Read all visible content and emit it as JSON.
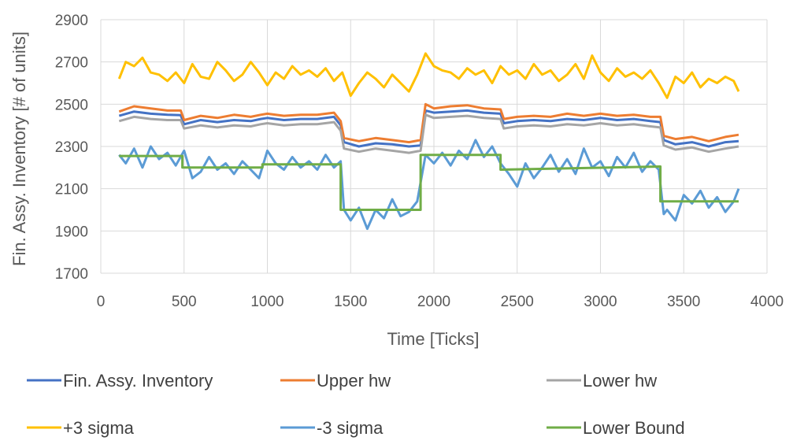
{
  "chart_data": {
    "type": "line",
    "xlabel": "Time [Ticks]",
    "ylabel": "Fin. Assy. Inventory [# of units]",
    "xlim": [
      0,
      4000
    ],
    "ylim": [
      1700,
      2900
    ],
    "xticks": [
      "0",
      "500",
      "1000",
      "1500",
      "2000",
      "2500",
      "3000",
      "3500",
      "4000"
    ],
    "yticks": [
      "1700",
      "1900",
      "2100",
      "2300",
      "2500",
      "2700",
      "2900"
    ],
    "grid": true,
    "legend_position": "bottom",
    "series": [
      {
        "name": "Fin. Assy. Inventory",
        "color": "#4472c4",
        "x": [
          110,
          200,
          300,
          400,
          480,
          500,
          600,
          700,
          800,
          900,
          960,
          1000,
          1100,
          1200,
          1300,
          1400,
          1440,
          1460,
          1550,
          1650,
          1750,
          1850,
          1920,
          1950,
          2000,
          2100,
          2200,
          2300,
          2400,
          2420,
          2500,
          2600,
          2700,
          2800,
          2900,
          3000,
          3100,
          3200,
          3300,
          3360,
          3380,
          3450,
          3550,
          3650,
          3750,
          3830
        ],
        "values": [
          2445,
          2465,
          2455,
          2450,
          2448,
          2405,
          2425,
          2415,
          2425,
          2420,
          2430,
          2435,
          2425,
          2430,
          2430,
          2440,
          2400,
          2320,
          2300,
          2315,
          2310,
          2300,
          2305,
          2470,
          2460,
          2465,
          2470,
          2460,
          2455,
          2410,
          2420,
          2425,
          2420,
          2430,
          2425,
          2435,
          2425,
          2430,
          2420,
          2415,
          2330,
          2310,
          2320,
          2300,
          2320,
          2325
        ]
      },
      {
        "name": "Upper hw",
        "color": "#ed7d31",
        "x": [
          110,
          200,
          300,
          400,
          480,
          500,
          600,
          700,
          800,
          900,
          960,
          1000,
          1100,
          1200,
          1300,
          1400,
          1440,
          1460,
          1550,
          1650,
          1750,
          1850,
          1920,
          1950,
          2000,
          2100,
          2200,
          2300,
          2400,
          2420,
          2500,
          2600,
          2700,
          2800,
          2900,
          3000,
          3100,
          3200,
          3300,
          3360,
          3380,
          3450,
          3550,
          3650,
          3750,
          3830
        ],
        "values": [
          2465,
          2490,
          2480,
          2470,
          2470,
          2425,
          2445,
          2435,
          2450,
          2440,
          2450,
          2455,
          2445,
          2450,
          2450,
          2460,
          2420,
          2340,
          2325,
          2340,
          2330,
          2320,
          2330,
          2500,
          2480,
          2490,
          2495,
          2480,
          2475,
          2430,
          2440,
          2445,
          2440,
          2455,
          2445,
          2455,
          2445,
          2450,
          2440,
          2440,
          2350,
          2335,
          2345,
          2325,
          2345,
          2355
        ]
      },
      {
        "name": "Lower hw",
        "color": "#a5a5a5",
        "x": [
          110,
          200,
          300,
          400,
          480,
          500,
          600,
          700,
          800,
          900,
          960,
          1000,
          1100,
          1200,
          1300,
          1400,
          1440,
          1460,
          1550,
          1650,
          1750,
          1850,
          1920,
          1950,
          2000,
          2100,
          2200,
          2300,
          2400,
          2420,
          2500,
          2600,
          2700,
          2800,
          2900,
          3000,
          3100,
          3200,
          3300,
          3360,
          3380,
          3450,
          3550,
          3650,
          3750,
          3830
        ],
        "values": [
          2420,
          2440,
          2430,
          2425,
          2425,
          2385,
          2400,
          2390,
          2400,
          2395,
          2405,
          2410,
          2400,
          2405,
          2405,
          2415,
          2375,
          2290,
          2275,
          2290,
          2280,
          2270,
          2280,
          2450,
          2435,
          2440,
          2445,
          2435,
          2430,
          2385,
          2395,
          2400,
          2395,
          2405,
          2400,
          2410,
          2400,
          2405,
          2395,
          2390,
          2305,
          2285,
          2295,
          2275,
          2290,
          2300
        ]
      },
      {
        "name": "+3 sigma",
        "color": "#ffc000",
        "x": [
          110,
          150,
          200,
          250,
          300,
          350,
          400,
          450,
          500,
          550,
          600,
          650,
          700,
          750,
          800,
          850,
          900,
          950,
          1000,
          1050,
          1100,
          1150,
          1200,
          1250,
          1300,
          1350,
          1400,
          1450,
          1500,
          1550,
          1600,
          1650,
          1700,
          1750,
          1800,
          1850,
          1900,
          1950,
          2000,
          2050,
          2100,
          2150,
          2200,
          2250,
          2300,
          2350,
          2400,
          2450,
          2500,
          2550,
          2600,
          2650,
          2700,
          2750,
          2800,
          2850,
          2900,
          2950,
          3000,
          3050,
          3100,
          3150,
          3200,
          3250,
          3300,
          3350,
          3400,
          3450,
          3500,
          3550,
          3600,
          3650,
          3700,
          3750,
          3800,
          3830
        ],
        "values": [
          2620,
          2700,
          2680,
          2720,
          2650,
          2640,
          2610,
          2650,
          2600,
          2690,
          2630,
          2620,
          2700,
          2660,
          2610,
          2640,
          2700,
          2650,
          2590,
          2650,
          2620,
          2680,
          2640,
          2660,
          2630,
          2670,
          2610,
          2650,
          2540,
          2600,
          2650,
          2620,
          2580,
          2640,
          2600,
          2560,
          2640,
          2740,
          2680,
          2660,
          2650,
          2620,
          2670,
          2640,
          2660,
          2600,
          2680,
          2640,
          2660,
          2620,
          2690,
          2640,
          2660,
          2610,
          2640,
          2690,
          2620,
          2730,
          2650,
          2610,
          2670,
          2630,
          2650,
          2620,
          2660,
          2600,
          2530,
          2630,
          2600,
          2650,
          2580,
          2620,
          2600,
          2630,
          2610,
          2560
        ]
      },
      {
        "name": "-3 sigma",
        "color": "#5b9bd5",
        "x": [
          110,
          150,
          200,
          250,
          300,
          350,
          400,
          450,
          500,
          550,
          600,
          650,
          700,
          750,
          800,
          850,
          900,
          950,
          1000,
          1050,
          1100,
          1150,
          1200,
          1250,
          1300,
          1350,
          1400,
          1440,
          1460,
          1500,
          1550,
          1600,
          1650,
          1700,
          1750,
          1800,
          1850,
          1900,
          1950,
          2000,
          2050,
          2100,
          2150,
          2200,
          2250,
          2300,
          2350,
          2400,
          2450,
          2500,
          2550,
          2600,
          2650,
          2700,
          2750,
          2800,
          2850,
          2900,
          2950,
          3000,
          3050,
          3100,
          3150,
          3200,
          3250,
          3300,
          3350,
          3380,
          3400,
          3450,
          3500,
          3550,
          3600,
          3650,
          3700,
          3750,
          3800,
          3830
        ],
        "values": [
          2260,
          2220,
          2290,
          2200,
          2300,
          2240,
          2270,
          2210,
          2280,
          2150,
          2180,
          2250,
          2190,
          2220,
          2170,
          2230,
          2190,
          2150,
          2280,
          2220,
          2190,
          2250,
          2200,
          2230,
          2190,
          2260,
          2200,
          2230,
          2000,
          1950,
          2010,
          1910,
          2000,
          1960,
          2050,
          1970,
          1990,
          2040,
          2260,
          2220,
          2270,
          2210,
          2280,
          2240,
          2330,
          2250,
          2300,
          2220,
          2170,
          2110,
          2220,
          2150,
          2200,
          2260,
          2180,
          2240,
          2170,
          2290,
          2200,
          2230,
          2160,
          2250,
          2200,
          2270,
          2180,
          2230,
          2190,
          1980,
          2000,
          1950,
          2070,
          2030,
          2090,
          2010,
          2060,
          1990,
          2040,
          2100
        ]
      },
      {
        "name": "Lower Bound",
        "color": "#70ad47",
        "x": [
          110,
          490,
          490,
          970,
          970,
          1440,
          1440,
          1920,
          1920,
          2400,
          2400,
          3360,
          3360,
          3830
        ],
        "values": [
          2255,
          2255,
          2200,
          2200,
          2215,
          2215,
          2000,
          2000,
          2260,
          2260,
          2190,
          2205,
          2040,
          2040
        ]
      }
    ]
  }
}
